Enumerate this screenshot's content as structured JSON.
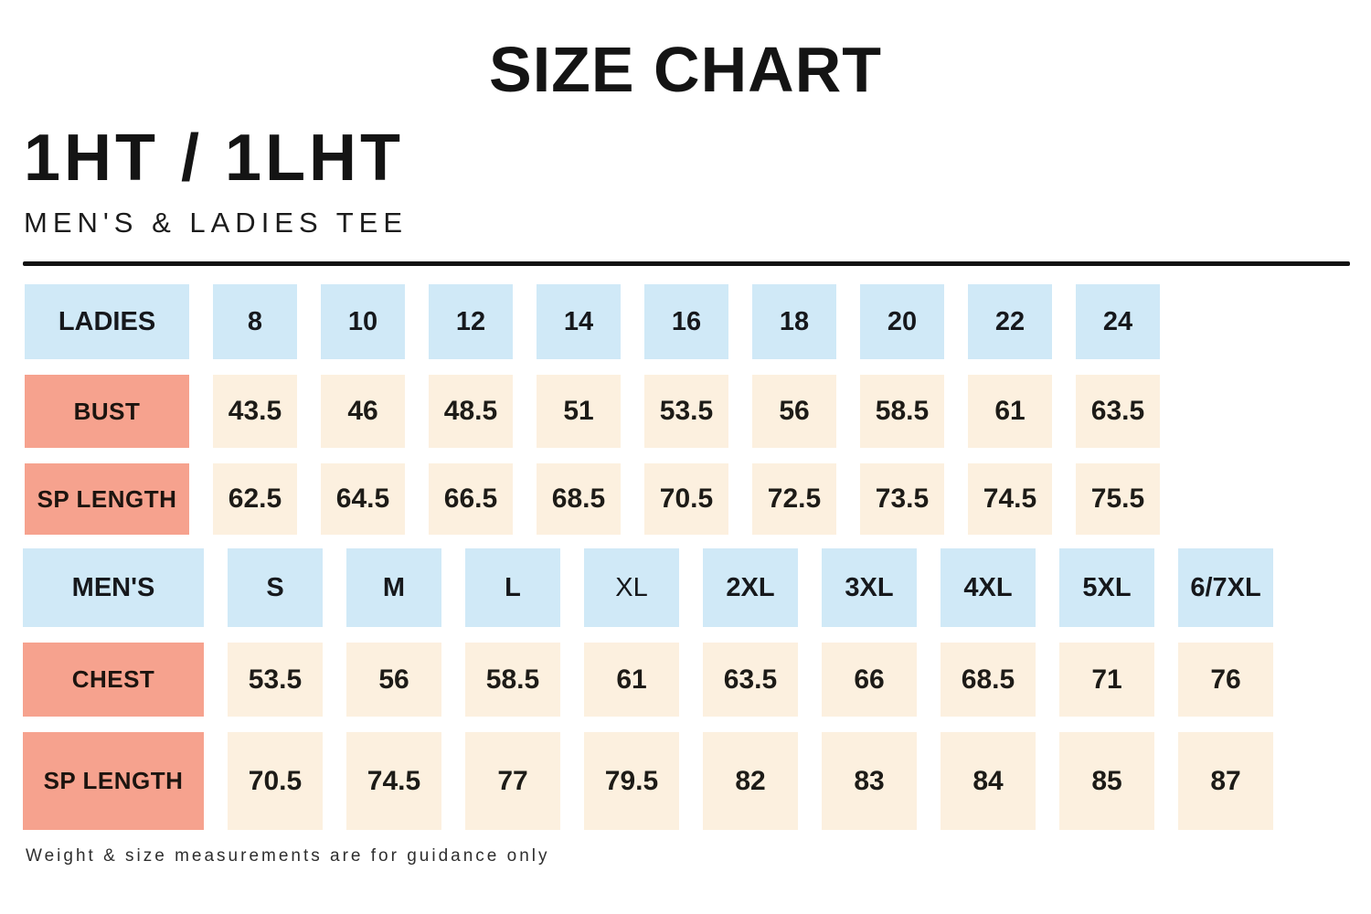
{
  "page": {
    "title": "SIZE CHART",
    "product_code": "1HT / 1LHT",
    "subtitle": "MEN'S & LADIES TEE",
    "footnote": "Weight & size measurements are for guidance only"
  },
  "colors": {
    "header_cell_bg": "#d0e9f7",
    "label_cell_bg": "#f6a28e",
    "value_cell_bg": "#fcf0df",
    "divider": "#121212",
    "text": "#141414"
  },
  "ladies": {
    "header": {
      "label": "LADIES",
      "sizes": [
        "8",
        "10",
        "12",
        "14",
        "16",
        "18",
        "20",
        "22",
        "24"
      ]
    },
    "rows": [
      {
        "label": "BUST",
        "values": [
          "43.5",
          "46",
          "48.5",
          "51",
          "53.5",
          "56",
          "58.5",
          "61",
          "63.5"
        ]
      },
      {
        "label": "SP LENGTH",
        "values": [
          "62.5",
          "64.5",
          "66.5",
          "68.5",
          "70.5",
          "72.5",
          "73.5",
          "74.5",
          "75.5"
        ]
      }
    ]
  },
  "mens": {
    "header": {
      "label": "MEN'S",
      "sizes": [
        "S",
        "M",
        "L",
        "XL",
        "2XL",
        "3XL",
        "4XL",
        "5XL",
        "6/7XL"
      ]
    },
    "rows": [
      {
        "label": "CHEST",
        "values": [
          "53.5",
          "56",
          "58.5",
          "61",
          "63.5",
          "66",
          "68.5",
          "71",
          "76"
        ]
      },
      {
        "label": "SP LENGTH",
        "values": [
          "70.5",
          "74.5",
          "77",
          "79.5",
          "82",
          "83",
          "84",
          "85",
          "87"
        ]
      }
    ]
  },
  "chart_data": {
    "type": "table",
    "title": "SIZE CHART",
    "tables": [
      {
        "name": "LADIES",
        "columns": [
          "8",
          "10",
          "12",
          "14",
          "16",
          "18",
          "20",
          "22",
          "24"
        ],
        "rows": {
          "BUST": [
            43.5,
            46,
            48.5,
            51,
            53.5,
            56,
            58.5,
            61,
            63.5
          ],
          "SP LENGTH": [
            62.5,
            64.5,
            66.5,
            68.5,
            70.5,
            72.5,
            73.5,
            74.5,
            75.5
          ]
        }
      },
      {
        "name": "MEN'S",
        "columns": [
          "S",
          "M",
          "L",
          "XL",
          "2XL",
          "3XL",
          "4XL",
          "5XL",
          "6/7XL"
        ],
        "rows": {
          "CHEST": [
            53.5,
            56,
            58.5,
            61,
            63.5,
            66,
            68.5,
            71,
            76
          ],
          "SP LENGTH": [
            70.5,
            74.5,
            77,
            79.5,
            82,
            83,
            84,
            85,
            87
          ]
        }
      }
    ]
  }
}
